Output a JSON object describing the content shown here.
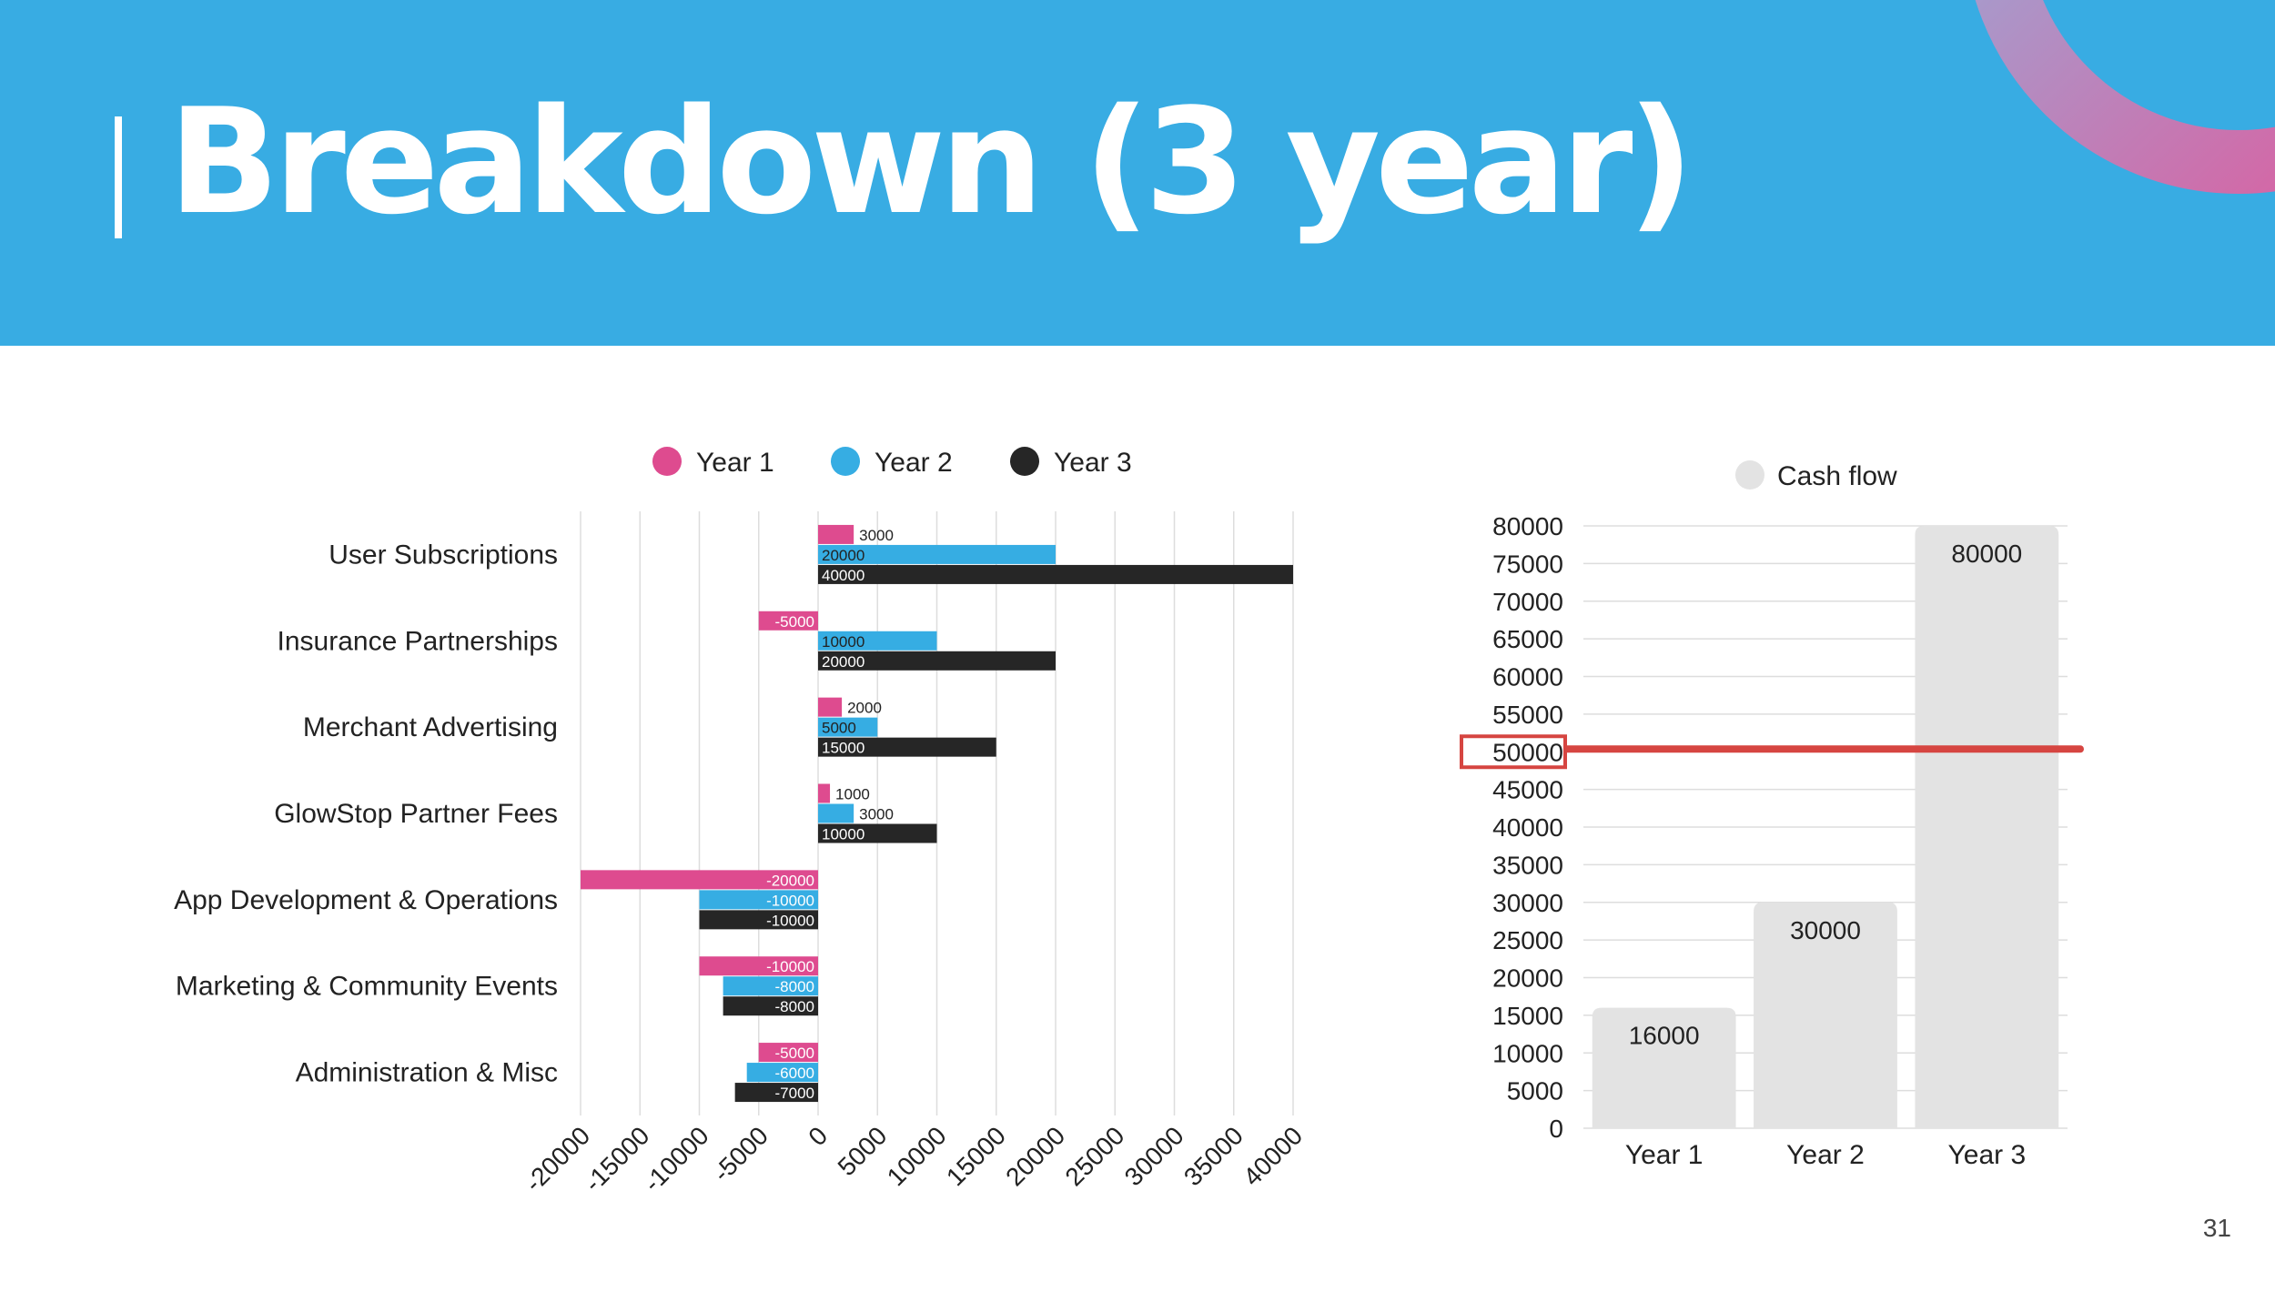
{
  "slide": {
    "title": "Breakdown (3 year)",
    "page_number": "31",
    "header_color": "#38ace3"
  },
  "chart_data": [
    {
      "type": "bar",
      "orientation": "horizontal",
      "categories": [
        "User Subscriptions",
        "Insurance Partnerships",
        "Merchant Advertising",
        "GlowStop Partner Fees",
        "App Development & Operations",
        "Marketing & Community Events",
        "Administration & Misc"
      ],
      "series": [
        {
          "name": "Year 1",
          "color": "#de4b8f",
          "values": [
            3000,
            -5000,
            2000,
            1000,
            -20000,
            -10000,
            -5000
          ]
        },
        {
          "name": "Year 2",
          "color": "#36ade3",
          "values": [
            20000,
            10000,
            5000,
            3000,
            -10000,
            -8000,
            -6000
          ]
        },
        {
          "name": "Year 3",
          "color": "#262626",
          "values": [
            40000,
            20000,
            15000,
            10000,
            -10000,
            -8000,
            -7000
          ]
        }
      ],
      "xlim": [
        -20000,
        40000
      ],
      "xticks": [
        "-20000",
        "-15000",
        "-10000",
        "-5000",
        "0",
        "5000",
        "10000",
        "15000",
        "20000",
        "25000",
        "30000",
        "35000",
        "40000"
      ],
      "legend": "top",
      "grid": true
    },
    {
      "type": "bar",
      "categories": [
        "Year 1",
        "Year 2",
        "Year 3"
      ],
      "series": [
        {
          "name": "Cash flow",
          "color": "#e3e3e3",
          "values": [
            16000,
            30000,
            80000
          ]
        }
      ],
      "ylim": [
        0,
        80000
      ],
      "yticks": [
        "0",
        "5000",
        "10000",
        "15000",
        "20000",
        "25000",
        "30000",
        "35000",
        "40000",
        "45000",
        "50000",
        "55000",
        "60000",
        "65000",
        "70000",
        "75000",
        "80000"
      ],
      "legend": "top",
      "grid": true,
      "annotation": {
        "value": 50000,
        "label": "50000",
        "color": "#d64541"
      }
    }
  ]
}
